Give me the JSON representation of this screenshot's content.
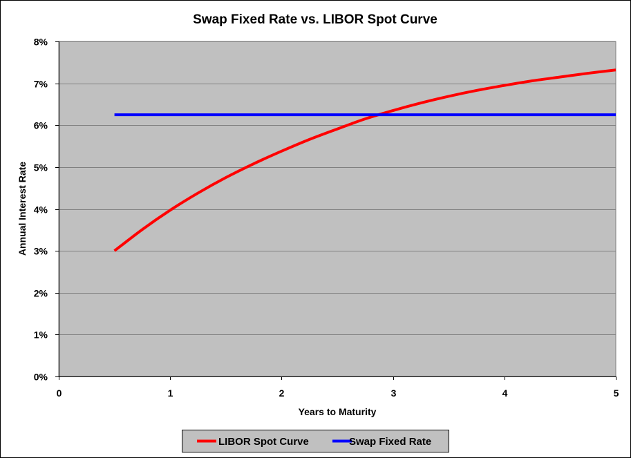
{
  "chart_data": {
    "type": "line",
    "title": "Swap Fixed Rate vs. LIBOR Spot Curve",
    "xlabel": "Years to Maturity",
    "ylabel": "Annual Interest Rate",
    "xlim": [
      0,
      5
    ],
    "ylim": [
      0,
      0.08
    ],
    "x_ticks": [
      0,
      1,
      2,
      3,
      4,
      5
    ],
    "x_tick_labels": [
      "0",
      "1",
      "2",
      "3",
      "4",
      "5"
    ],
    "y_ticks": [
      0,
      0.01,
      0.02,
      0.03,
      0.04,
      0.05,
      0.06,
      0.07,
      0.08
    ],
    "y_tick_labels": [
      "0%",
      "1%",
      "2%",
      "3%",
      "4%",
      "5%",
      "6%",
      "7%",
      "8%"
    ],
    "grid": true,
    "plot_background": "#C0C0C0",
    "legend_position": "bottom",
    "series": [
      {
        "name": "LIBOR Spot Curve",
        "color": "#FF0000",
        "x": [
          0.5,
          0.75,
          1.0,
          1.25,
          1.5,
          1.75,
          2.0,
          2.25,
          2.5,
          2.75,
          3.0,
          3.25,
          3.5,
          3.75,
          4.0,
          4.25,
          4.5,
          4.75,
          5.0
        ],
        "y": [
          0.03,
          0.0351,
          0.0397,
          0.0438,
          0.0475,
          0.0508,
          0.0538,
          0.0566,
          0.0591,
          0.0615,
          0.0635,
          0.0653,
          0.0669,
          0.0683,
          0.0695,
          0.0706,
          0.0715,
          0.0724,
          0.0732
        ]
      },
      {
        "name": "Swap Fixed Rate",
        "color": "#0000FF",
        "x": [
          0.5,
          5.0
        ],
        "y": [
          0.0625,
          0.0625
        ]
      }
    ]
  }
}
